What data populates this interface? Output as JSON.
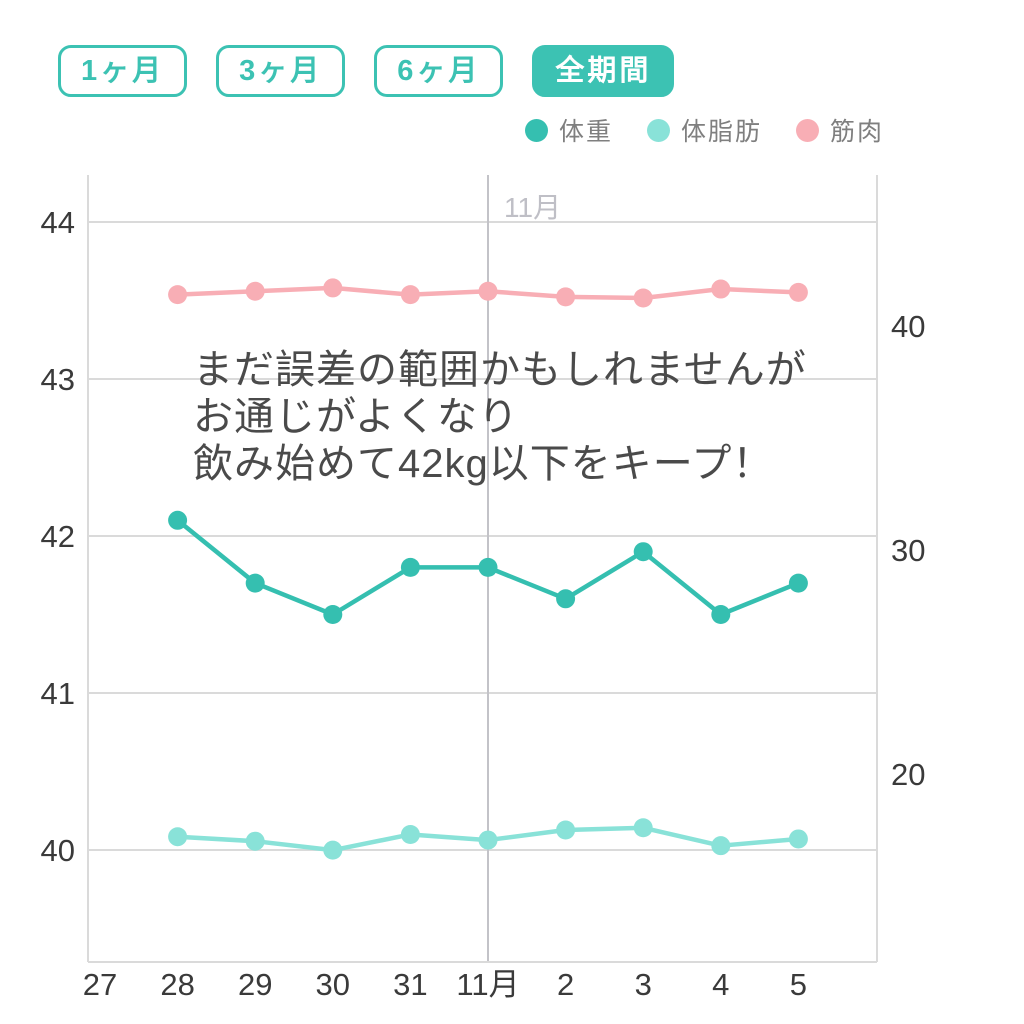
{
  "filters": {
    "items": [
      {
        "label": "1ヶ月",
        "selected": false
      },
      {
        "label": "3ヶ月",
        "selected": false
      },
      {
        "label": "6ヶ月",
        "selected": false
      },
      {
        "label": "全期間",
        "selected": true
      }
    ]
  },
  "legend": {
    "items": [
      {
        "label": "体重",
        "color": "#35bfb0"
      },
      {
        "label": "体脂肪",
        "color": "#89e2d8"
      },
      {
        "label": "筋肉",
        "color": "#f8aeb5"
      }
    ]
  },
  "annotation": {
    "line1": "まだ誤差の範囲かもしれませんが",
    "line2": "お通じがよくなり",
    "line3": "飲み始めて42kg以下をキープ！"
  },
  "colors": {
    "accent_teal": "#3cc2b3",
    "weight_line": "#35bfb0",
    "bodyfat_line": "#89e2d8",
    "muscle_line": "#f8aeb5",
    "gridline": "#dadada",
    "month_divider": "#c3c3c8",
    "axis_text": "#3a3a3a",
    "top_label_text": "#bfbfc6",
    "legend_text": "#7f7f7f"
  },
  "chart_data": {
    "type": "line",
    "categories": [
      "27",
      "28",
      "29",
      "30",
      "31",
      "11月",
      "2",
      "3",
      "4",
      "5"
    ],
    "top_label": "11月",
    "month_divider_category": "11月",
    "left_axis": {
      "ticks": [
        44,
        43,
        42,
        41,
        40
      ],
      "range": [
        39.4,
        44.3
      ]
    },
    "right_axis": {
      "ticks": [
        40,
        30,
        20
      ],
      "range": [
        11.6,
        46.8
      ]
    },
    "grid": "horizontal-only",
    "legend_position": "top-right",
    "series": [
      {
        "name": "体重",
        "axis": "left",
        "color": "#35bfb0",
        "start_category": "28",
        "start_index": 1,
        "values": [
          42.1,
          41.7,
          41.5,
          41.8,
          41.8,
          41.6,
          41.9,
          41.5,
          41.7
        ]
      },
      {
        "name": "体脂肪",
        "axis": "right",
        "color": "#89e2d8",
        "start_category": "28",
        "start_index": 1,
        "values": [
          17.2,
          17.0,
          16.6,
          17.3,
          17.05,
          17.5,
          17.6,
          16.8,
          17.1
        ]
      },
      {
        "name": "筋肉",
        "axis": "right",
        "color": "#f8aeb5",
        "start_category": "28",
        "start_index": 1,
        "values": [
          41.4,
          41.55,
          41.7,
          41.4,
          41.55,
          41.3,
          41.25,
          41.65,
          41.5
        ]
      }
    ]
  }
}
